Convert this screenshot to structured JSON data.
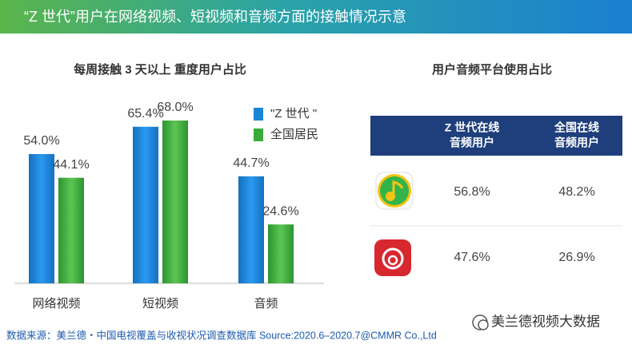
{
  "header": {
    "title": "“Z 世代”用户在网络视频、短视频和音频方面的接触情况示意"
  },
  "chart_data": {
    "type": "bar",
    "title": "每周接触 3 天以上 重度用户占比",
    "categories": [
      "网络视频",
      "短视频",
      "音频"
    ],
    "series": [
      {
        "name": "\"Z 世代 \"",
        "color": "#1b86d6",
        "values": [
          54.0,
          65.4,
          44.7
        ],
        "value_labels": [
          "54.0%",
          "65.4%",
          "44.7%"
        ]
      },
      {
        "name": "全国居民",
        "color": "#3aab3a",
        "values": [
          44.1,
          68.0,
          24.6
        ],
        "value_labels": [
          "44.1%",
          "68.0%",
          "24.6%"
        ]
      }
    ]
  },
  "table": {
    "title": "用户音频平台使用占比",
    "columns": [
      [
        "Z 世代在线",
        "音频用户"
      ],
      [
        "全国在线",
        "音频用户"
      ]
    ],
    "rows": [
      [
        "56.8%",
        "48.2%"
      ],
      [
        "47.6%",
        "26.9%"
      ]
    ]
  },
  "footer": {
    "source": "数据来源：美兰德・中国电视覆盖与收视状况调查数据库 Source:2020.6–2020.7@CMMR Co.,Ltd",
    "watermark": "美兰德视频大数据"
  }
}
